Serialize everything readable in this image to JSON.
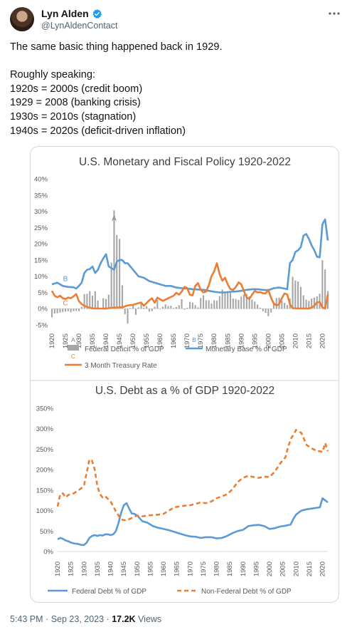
{
  "author": {
    "display_name": "Lyn Alden",
    "handle": "@LynAldenContact",
    "verified_icon": "verified-badge-icon",
    "avatar_icon": "avatar"
  },
  "tweet": {
    "text": "The same basic thing happened back in 1929.\n\nRoughly speaking:\n1920s = 2000s (credit boom)\n1929 = 2008 (banking crisis)\n1930s = 2010s (stagnation)\n1940s = 2020s (deficit-driven inflation)"
  },
  "footer": {
    "time": "5:43 PM",
    "separator": "·",
    "date": "Sep 23, 2023",
    "views_count": "17.2K",
    "views_label": "Views"
  },
  "colors": {
    "gray": "#a6a6a6",
    "blue": "#5b9bd5",
    "orange": "#ed7d31"
  },
  "chart_data": [
    {
      "type": "bar",
      "title": "U.S. Monetary and Fiscal Policy 1920-2022",
      "x_ticks": [
        "1920",
        "1925",
        "1930",
        "1935",
        "1940",
        "1945",
        "1950",
        "1955",
        "1960",
        "1965",
        "1970",
        "1975",
        "1980",
        "1985",
        "1990",
        "1995",
        "2000",
        "2005",
        "2010",
        "2015",
        "2020"
      ],
      "xlim": [
        1920,
        2022
      ],
      "y_ticks": [
        "40%",
        "35%",
        "30%",
        "25%",
        "20%",
        "15%",
        "10%",
        "5%",
        "0%",
        "-5%"
      ],
      "ylim": [
        -5,
        40
      ],
      "grid": false,
      "legend_position": "bottom",
      "annotations": [
        {
          "text": "A",
          "x": 1943,
          "y": 27
        },
        {
          "text": "B",
          "x": 1925,
          "y": 8.5
        },
        {
          "text": "C",
          "x": 1925,
          "y": 1
        }
      ],
      "series": [
        {
          "name": "Federal Deficit % of GDP",
          "kind": "bar",
          "legend_marker": "A",
          "color": "#a6a6a6",
          "x": [
            1920,
            1921,
            1922,
            1923,
            1924,
            1925,
            1926,
            1927,
            1928,
            1929,
            1930,
            1931,
            1932,
            1933,
            1934,
            1935,
            1936,
            1937,
            1938,
            1939,
            1940,
            1941,
            1942,
            1943,
            1944,
            1945,
            1946,
            1947,
            1948,
            1949,
            1950,
            1951,
            1952,
            1953,
            1954,
            1955,
            1956,
            1957,
            1958,
            1959,
            1960,
            1961,
            1962,
            1963,
            1964,
            1965,
            1966,
            1967,
            1968,
            1969,
            1970,
            1971,
            1972,
            1973,
            1974,
            1975,
            1976,
            1977,
            1978,
            1979,
            1980,
            1981,
            1982,
            1983,
            1984,
            1985,
            1986,
            1987,
            1988,
            1989,
            1990,
            1991,
            1992,
            1993,
            1994,
            1995,
            1996,
            1997,
            1998,
            1999,
            2000,
            2001,
            2002,
            2003,
            2004,
            2005,
            2006,
            2007,
            2008,
            2009,
            2010,
            2011,
            2012,
            2013,
            2014,
            2015,
            2016,
            2017,
            2018,
            2019,
            2020,
            2021,
            2022
          ],
          "values": [
            -2.7,
            -1.5,
            -1.4,
            -1.2,
            -1.0,
            -0.9,
            -0.8,
            -1.1,
            -0.8,
            -0.7,
            -0.8,
            0.6,
            4.5,
            4.6,
            5.4,
            4.0,
            5.4,
            2.5,
            0.1,
            3.2,
            3.0,
            4.3,
            14.2,
            30.3,
            22.7,
            21.5,
            7.2,
            -1.7,
            -4.6,
            0.2,
            1.1,
            -1.9,
            0.4,
            1.7,
            0.3,
            0.8,
            -0.9,
            -0.8,
            0.6,
            2.6,
            -0.1,
            0.6,
            1.3,
            0.8,
            0.9,
            0.2,
            0.5,
            1.1,
            2.9,
            -0.3,
            0.3,
            2.1,
            1.9,
            1.1,
            0.4,
            3.3,
            4.1,
            2.6,
            2.6,
            1.6,
            2.6,
            2.5,
            3.9,
            5.9,
            4.7,
            5.0,
            4.9,
            3.1,
            3.0,
            2.7,
            3.7,
            4.4,
            4.5,
            3.8,
            2.8,
            2.2,
            1.3,
            0.3,
            -0.8,
            -1.3,
            -2.3,
            -1.2,
            1.5,
            3.3,
            3.4,
            2.5,
            1.8,
            1.1,
            3.1,
            9.8,
            8.7,
            8.4,
            6.7,
            4.1,
            2.8,
            2.4,
            3.1,
            3.4,
            3.8,
            4.6,
            14.9,
            12.1,
            5.4
          ]
        },
        {
          "name": "Monetary Base % of GDP",
          "kind": "line",
          "legend_marker": "B",
          "color": "#5b9bd5",
          "x": [
            1920,
            1922,
            1924,
            1926,
            1928,
            1929,
            1930,
            1931,
            1932,
            1933,
            1934,
            1935,
            1936,
            1937,
            1938,
            1939,
            1940,
            1941,
            1942,
            1943,
            1944,
            1945,
            1946,
            1947,
            1948,
            1949,
            1950,
            1952,
            1954,
            1956,
            1958,
            1960,
            1962,
            1964,
            1966,
            1968,
            1970,
            1972,
            1974,
            1976,
            1978,
            1980,
            1982,
            1984,
            1986,
            1988,
            1990,
            1992,
            1994,
            1996,
            1998,
            2000,
            2002,
            2004,
            2006,
            2007,
            2008,
            2009,
            2010,
            2011,
            2012,
            2013,
            2014,
            2015,
            2016,
            2017,
            2018,
            2019,
            2020,
            2021,
            2022
          ],
          "values": [
            7.5,
            8,
            7,
            6.7,
            6.6,
            6.2,
            7,
            8,
            11,
            12,
            12.2,
            13,
            11,
            12,
            14,
            15.5,
            16.8,
            13,
            12.5,
            12,
            14.5,
            15,
            15,
            14,
            14,
            13,
            12,
            10,
            9.5,
            8.5,
            8,
            7.5,
            7,
            7,
            6.5,
            6.3,
            6.2,
            6,
            5.9,
            5.8,
            5.5,
            5.2,
            5,
            5,
            5.2,
            5.3,
            5.5,
            5.8,
            6,
            6,
            5.8,
            5.7,
            6.3,
            6.5,
            6.2,
            6,
            14,
            15,
            17.5,
            18,
            19,
            22.5,
            23,
            21.5,
            19.5,
            18,
            16,
            15.8,
            26,
            27.5,
            21
          ]
        },
        {
          "name": "3 Month Treasury Rate",
          "kind": "line",
          "legend_marker": "C",
          "color": "#ed7d31",
          "x": [
            1920,
            1921,
            1922,
            1923,
            1924,
            1925,
            1926,
            1927,
            1928,
            1929,
            1930,
            1931,
            1932,
            1933,
            1934,
            1935,
            1938,
            1940,
            1942,
            1945,
            1946,
            1948,
            1950,
            1952,
            1953,
            1954,
            1956,
            1957,
            1958,
            1959,
            1960,
            1961,
            1963,
            1965,
            1966,
            1967,
            1968,
            1969,
            1970,
            1971,
            1972,
            1973,
            1974,
            1975,
            1976,
            1977,
            1978,
            1979,
            1980,
            1981,
            1982,
            1983,
            1984,
            1985,
            1986,
            1987,
            1988,
            1989,
            1990,
            1991,
            1992,
            1993,
            1994,
            1995,
            1996,
            1997,
            1998,
            1999,
            2000,
            2001,
            2002,
            2003,
            2004,
            2005,
            2006,
            2007,
            2008,
            2009,
            2011,
            2013,
            2015,
            2016,
            2017,
            2018,
            2019,
            2020,
            2021,
            2022
          ],
          "values": [
            5.5,
            4.0,
            3.5,
            4.0,
            3.2,
            3.0,
            3.4,
            3.2,
            3.8,
            4.5,
            2.3,
            1.4,
            0.9,
            0.5,
            0.3,
            0.1,
            0.05,
            0.02,
            0.3,
            0.4,
            0.4,
            1.0,
            1.2,
            1.7,
            1.9,
            0.9,
            2.6,
            3.2,
            1.8,
            3.4,
            2.9,
            2.4,
            3.2,
            4.0,
            4.9,
            4.3,
            5.3,
            6.7,
            6.4,
            4.3,
            4.1,
            7.0,
            7.9,
            5.8,
            5.0,
            5.3,
            7.2,
            10.0,
            11.5,
            14.0,
            10.7,
            8.6,
            9.5,
            7.5,
            6.0,
            5.8,
            6.7,
            8.1,
            7.5,
            5.4,
            3.4,
            3.0,
            4.3,
            5.5,
            5.0,
            5.1,
            4.8,
            4.7,
            5.8,
            3.4,
            1.6,
            1.0,
            1.4,
            3.2,
            4.7,
            4.4,
            1.4,
            0.15,
            0.05,
            0.06,
            0.05,
            0.32,
            0.93,
            1.94,
            2.06,
            0.37,
            0.05,
            4.4
          ]
        }
      ]
    },
    {
      "type": "line",
      "title": "U.S. Debt as a % of GDP 1920-2022",
      "x_ticks": [
        "1920",
        "1925",
        "1930",
        "1935",
        "1940",
        "1945",
        "1950",
        "1955",
        "1960",
        "1965",
        "1970",
        "1975",
        "1980",
        "1985",
        "1990",
        "1995",
        "2000",
        "2005",
        "2010",
        "2015",
        "2020"
      ],
      "xlim": [
        1920,
        2022
      ],
      "y_ticks": [
        "350%",
        "300%",
        "250%",
        "200%",
        "150%",
        "100%",
        "50%",
        "0%"
      ],
      "ylim": [
        0,
        350
      ],
      "grid": false,
      "legend_position": "bottom",
      "series": [
        {
          "name": "Federal Debt % of GDP",
          "style": "solid",
          "color": "#5b9bd5",
          "x": [
            1920,
            1921,
            1922,
            1923,
            1924,
            1925,
            1926,
            1927,
            1928,
            1929,
            1930,
            1931,
            1932,
            1933,
            1934,
            1935,
            1936,
            1937,
            1938,
            1939,
            1940,
            1941,
            1942,
            1943,
            1944,
            1945,
            1946,
            1947,
            1948,
            1949,
            1950,
            1952,
            1954,
            1956,
            1958,
            1960,
            1962,
            1964,
            1966,
            1968,
            1970,
            1972,
            1974,
            1976,
            1978,
            1980,
            1982,
            1984,
            1986,
            1988,
            1990,
            1992,
            1994,
            1996,
            1998,
            2000,
            2002,
            2004,
            2006,
            2008,
            2009,
            2010,
            2011,
            2012,
            2014,
            2016,
            2018,
            2019,
            2020,
            2021,
            2022
          ],
          "values": [
            30,
            33,
            31,
            27,
            25,
            22,
            20,
            19,
            18,
            16,
            16,
            22,
            33,
            38,
            40,
            38,
            40,
            39,
            42,
            42,
            40,
            42,
            50,
            70,
            95,
            113,
            118,
            105,
            93,
            92,
            88,
            74,
            70,
            62,
            58,
            55,
            52,
            48,
            44,
            40,
            37,
            36,
            33,
            35,
            35,
            32,
            33,
            38,
            45,
            50,
            53,
            62,
            64,
            65,
            62,
            55,
            57,
            61,
            63,
            66,
            80,
            90,
            95,
            100,
            103,
            105,
            107,
            108,
            130,
            125,
            120
          ]
        },
        {
          "name": "Non-Federal Debt % of GDP",
          "style": "dashed",
          "color": "#ed7d31",
          "x": [
            1920,
            1921,
            1922,
            1923,
            1924,
            1926,
            1928,
            1929,
            1930,
            1931,
            1932,
            1933,
            1934,
            1935,
            1936,
            1937,
            1938,
            1940,
            1942,
            1944,
            1946,
            1948,
            1950,
            1952,
            1954,
            1956,
            1958,
            1960,
            1962,
            1964,
            1966,
            1968,
            1970,
            1972,
            1974,
            1976,
            1978,
            1980,
            1982,
            1984,
            1986,
            1988,
            1990,
            1992,
            1994,
            1996,
            1998,
            2000,
            2002,
            2004,
            2006,
            2007,
            2008,
            2009,
            2010,
            2012,
            2014,
            2016,
            2018,
            2019,
            2020,
            2021,
            2022
          ],
          "values": [
            110,
            140,
            142,
            132,
            138,
            142,
            150,
            155,
            163,
            193,
            225,
            222,
            200,
            160,
            140,
            132,
            135,
            122,
            98,
            78,
            76,
            82,
            88,
            86,
            88,
            89,
            90,
            92,
            100,
            108,
            110,
            112,
            113,
            116,
            120,
            118,
            122,
            130,
            135,
            140,
            152,
            170,
            180,
            185,
            182,
            180,
            183,
            182,
            195,
            215,
            230,
            255,
            275,
            285,
            297,
            290,
            260,
            252,
            245,
            245,
            243,
            265,
            245
          ]
        }
      ]
    }
  ]
}
